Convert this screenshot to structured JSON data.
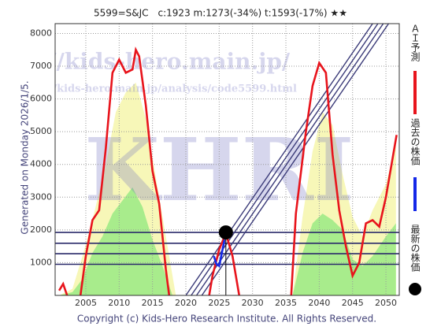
{
  "chart_data": {
    "type": "line",
    "title": "5599=S&JC　c:1923  m:1273(-34%)  t:1593(-17%)  ★★",
    "side_label": "Generated on Monday 2026/1/5.",
    "footer": "Copyright (c) Kids-Hero Research Institute. All Rights Reserved.",
    "watermarks": [
      "http://kids-hero.main.jp/",
      "http://kids-hero.main.jp/analysis/code5599.html",
      "KHRI"
    ],
    "xlim": [
      2000.4,
      2052
    ],
    "ylim": [
      0,
      8300
    ],
    "xticks": [
      2005,
      2010,
      2015,
      2020,
      2025,
      2030,
      2035,
      2040,
      2045,
      2050
    ],
    "yticks": [
      1000,
      2000,
      3000,
      4000,
      5000,
      6000,
      7000,
      8000
    ],
    "grid": true,
    "areas": [
      {
        "color": "#f7f7b8",
        "x": [
          2001,
          2003,
          2004.5,
          2006,
          2008,
          2009.5,
          2011,
          2012.5,
          2014,
          2015.5,
          2017,
          2018.5,
          2036,
          2037.5,
          2039,
          2040.5,
          2042,
          2043.5,
          2045,
          2046.5,
          2048,
          2050,
          2051.5
        ],
        "values": [
          0,
          200,
          1200,
          2300,
          4000,
          5600,
          6200,
          6500,
          5400,
          3600,
          1800,
          0,
          0,
          2400,
          4400,
          5600,
          5200,
          3700,
          2400,
          1800,
          2600,
          3400,
          4600
        ]
      },
      {
        "color": "#a8ec8c",
        "x": [
          2001,
          2003,
          2004.5,
          2006,
          2007.5,
          2009,
          2010.5,
          2012,
          2013.5,
          2015,
          2016.5,
          2018,
          2036,
          2037.5,
          2039,
          2040.5,
          2042,
          2043.5,
          2045,
          2046.5,
          2048,
          2050,
          2051.5
        ],
        "values": [
          0,
          100,
          500,
          1300,
          1800,
          2500,
          2900,
          3300,
          2700,
          1700,
          900,
          0,
          0,
          1300,
          2200,
          2500,
          2300,
          2000,
          1100,
          900,
          1200,
          1800,
          2200
        ]
      }
    ],
    "ref_lines": {
      "color": "#2a2a6a",
      "values": [
        1923,
        1593,
        1273,
        950
      ]
    },
    "trend_lines": {
      "color": "#3a3a78",
      "x": [
        [
          2020,
          2048
        ],
        [
          2020.8,
          2048.8
        ],
        [
          2021.6,
          2049.6
        ],
        [
          2022.4,
          2050.4
        ]
      ],
      "values": [
        [
          0,
          8300
        ],
        [
          0,
          8300
        ],
        [
          0,
          8300
        ],
        [
          0,
          8300
        ]
      ]
    },
    "series": [
      {
        "name": "ＡＩ予測",
        "color": "#e8141c",
        "x": [
          2001,
          2001.6,
          2002.2,
          2003,
          2004.2,
          2005,
          2006,
          2007,
          2008,
          2009,
          2010,
          2011,
          2012,
          2012.5,
          2013,
          2014,
          2015,
          2016,
          2017,
          2017.5,
          2020,
          2023.5,
          2024,
          2025,
          2026,
          2027,
          2028,
          2032,
          2035.8,
          2036.5,
          2038,
          2039,
          2040,
          2041,
          2042,
          2043,
          2044,
          2045,
          2046,
          2047,
          2048,
          2049,
          2050,
          2051.6
        ],
        "values": [
          150,
          350,
          0,
          null,
          0,
          1200,
          2300,
          2600,
          4500,
          6800,
          7200,
          6800,
          6900,
          7500,
          7300,
          5800,
          3800,
          2800,
          800,
          0,
          null,
          0,
          600,
          1400,
          1900,
          1200,
          0,
          null,
          0,
          2500,
          5000,
          6400,
          7100,
          6800,
          4300,
          2600,
          1500,
          600,
          1000,
          2200,
          2300,
          2100,
          3000,
          4900
        ]
      },
      {
        "name": "過去の株価",
        "color": "#1428e8",
        "x": [
          2024.2,
          2024.6,
          2025,
          2025.4,
          2025.8
        ],
        "values": [
          1200,
          950,
          900,
          1300,
          1700
        ]
      },
      {
        "name": "最新の株価",
        "color": "#000000",
        "x": [
          2026
        ],
        "values": [
          1923
        ]
      }
    ]
  }
}
